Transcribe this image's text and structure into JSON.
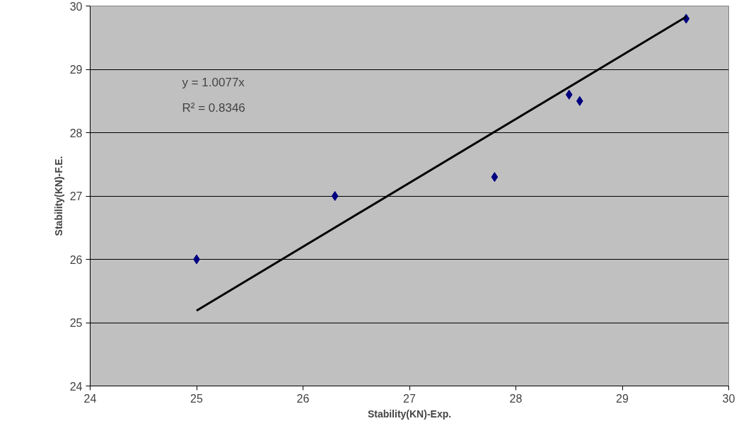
{
  "chart_data": {
    "type": "scatter",
    "xlabel": "Stability(KN)-Exp.",
    "ylabel": "Stability(KN)-F.E.",
    "x": [
      25,
      26.3,
      27.8,
      28.5,
      28.6,
      29.6
    ],
    "series": [
      {
        "color": "#000080",
        "values": [
          26,
          27,
          27.3,
          28.6,
          28.5,
          29.8
        ],
        "marker": "diamond"
      },
      {
        "type": "line",
        "color": "#000000",
        "x": [
          25,
          29.6
        ],
        "values": [
          25.19,
          29.83
        ],
        "marker": "none"
      }
    ],
    "xlim": [
      24,
      30
    ],
    "ylim": [
      24,
      30
    ],
    "xticks": [
      24,
      25,
      26,
      27,
      28,
      29,
      30
    ],
    "yticks": [
      24,
      25,
      26,
      27,
      28,
      29,
      30
    ],
    "grid": "y",
    "annotations": [
      "y = 1.0077x",
      "R² = 0.8346"
    ]
  }
}
